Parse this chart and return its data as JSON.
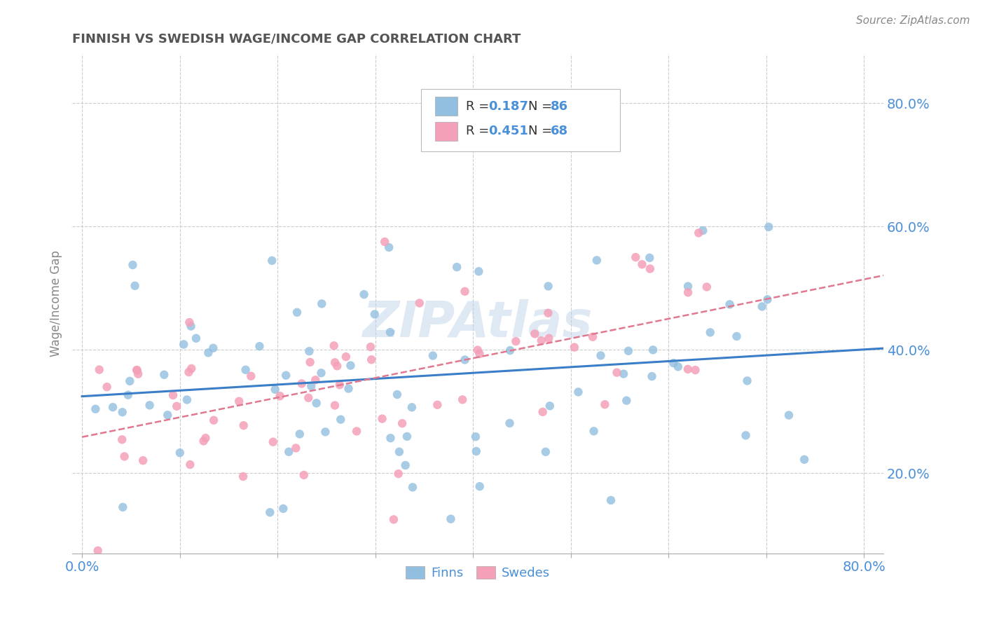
{
  "title": "FINNISH VS SWEDISH WAGE/INCOME GAP CORRELATION CHART",
  "source": "Source: ZipAtlas.com",
  "ylabel": "Wage/Income Gap",
  "ytick_labels": [
    "20.0%",
    "40.0%",
    "60.0%",
    "80.0%"
  ],
  "ytick_values": [
    0.2,
    0.4,
    0.6,
    0.8
  ],
  "xtick_values": [
    0.0,
    0.1,
    0.2,
    0.3,
    0.4,
    0.5,
    0.6,
    0.7,
    0.8
  ],
  "xtick_labels": [
    "0.0%",
    "",
    "",
    "",
    "",
    "",
    "",
    "",
    "80.0%"
  ],
  "xlim": [
    -0.01,
    0.82
  ],
  "ylim": [
    0.07,
    0.88
  ],
  "finns_color": "#92BFE0",
  "swedes_color": "#F4A0B8",
  "finns_R": 0.187,
  "finns_N": 86,
  "swedes_R": 0.451,
  "swedes_N": 68,
  "watermark": "ZIPAtlas",
  "legend_label_finns": "Finns",
  "legend_label_swedes": "Swedes",
  "background_color": "#FFFFFF",
  "grid_color": "#CCCCCC",
  "title_color": "#555555",
  "axis_label_color": "#4A90D9",
  "regression_finns_color": "#3B7EC8",
  "regression_swedes_color": "#E07890",
  "regression_swedes_style": "--"
}
